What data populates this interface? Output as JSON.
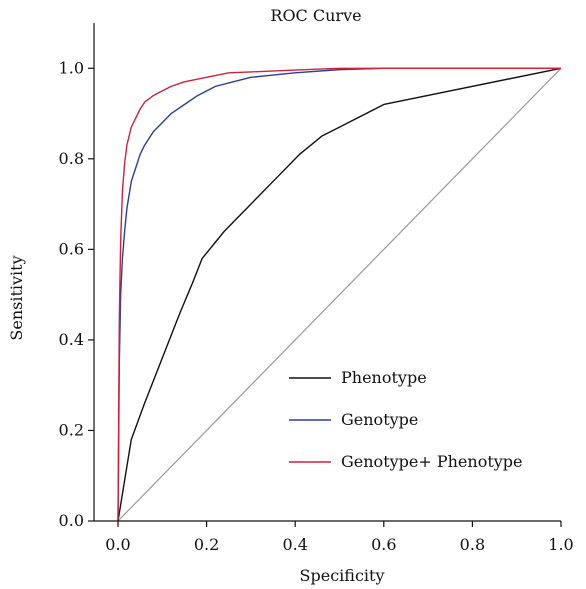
{
  "chart_data": {
    "type": "line",
    "title": "ROC Curve",
    "xlabel": "Specificity",
    "ylabel": "Sensitivity",
    "xlim": [
      0,
      1
    ],
    "ylim": [
      0,
      1.1
    ],
    "x_ticks": [
      0.0,
      0.2,
      0.4,
      0.6,
      0.8,
      1.0
    ],
    "x_tick_labels": [
      "0.0",
      "0.2",
      "0.4",
      "0.6",
      "0.8",
      "1.0"
    ],
    "y_ticks": [
      0.0,
      0.2,
      0.4,
      0.6,
      0.8,
      1.0
    ],
    "y_tick_labels": [
      "0.0",
      "0.2",
      "0.4",
      "0.6",
      "0.8",
      "1.0"
    ],
    "grid": false,
    "legend_position": "bottom-right",
    "reference_line": {
      "x": [
        0,
        1
      ],
      "y": [
        0,
        1
      ],
      "color": "#999999"
    },
    "series": [
      {
        "name": "Phenotype",
        "color": "#111111",
        "x": [
          0.0,
          0.01,
          0.03,
          0.06,
          0.1,
          0.14,
          0.17,
          0.19,
          0.24,
          0.3,
          0.36,
          0.41,
          0.46,
          0.6,
          1.0
        ],
        "y": [
          0.0,
          0.06,
          0.18,
          0.26,
          0.36,
          0.46,
          0.53,
          0.58,
          0.64,
          0.7,
          0.76,
          0.81,
          0.85,
          0.92,
          1.0
        ]
      },
      {
        "name": "Genotype",
        "color": "#2b3f99",
        "x": [
          0.0,
          0.003,
          0.006,
          0.01,
          0.015,
          0.02,
          0.03,
          0.04,
          0.05,
          0.06,
          0.08,
          0.1,
          0.12,
          0.15,
          0.18,
          0.22,
          0.26,
          0.3,
          0.35,
          0.4,
          0.5,
          0.6,
          0.7,
          1.0
        ],
        "y": [
          0.0,
          0.35,
          0.5,
          0.58,
          0.64,
          0.69,
          0.75,
          0.78,
          0.81,
          0.83,
          0.86,
          0.88,
          0.9,
          0.92,
          0.94,
          0.96,
          0.97,
          0.98,
          0.985,
          0.99,
          0.997,
          1.0,
          1.0,
          1.0
        ]
      },
      {
        "name": "Genotype+ Phenotype",
        "color": "#d0213b",
        "x": [
          0.0,
          0.003,
          0.006,
          0.01,
          0.015,
          0.02,
          0.03,
          0.04,
          0.05,
          0.06,
          0.08,
          0.1,
          0.12,
          0.15,
          0.2,
          0.25,
          0.3,
          0.4,
          0.5,
          0.6,
          1.0
        ],
        "y": [
          0.0,
          0.45,
          0.62,
          0.73,
          0.79,
          0.83,
          0.87,
          0.89,
          0.91,
          0.925,
          0.94,
          0.95,
          0.96,
          0.97,
          0.98,
          0.99,
          0.992,
          0.996,
          1.0,
          1.0,
          1.0
        ]
      }
    ]
  }
}
